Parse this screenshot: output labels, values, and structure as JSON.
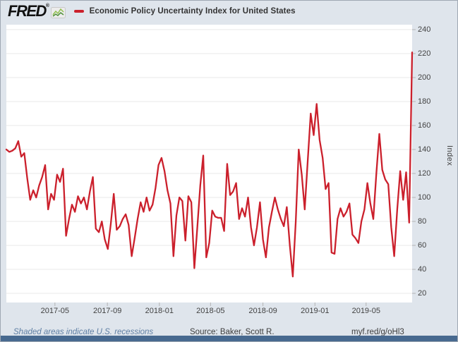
{
  "header": {
    "logo_text": "FRED",
    "logo_registered": "®",
    "series_title": "Economic Policy Uncertainty Index for United States"
  },
  "footer": {
    "recession_note": "Shaded areas indicate U.S. recessions",
    "source": "Source: Baker, Scott R.",
    "shortlink": "myf.red/g/oHl3"
  },
  "colors": {
    "line": "#cb202c",
    "background": "#dfe5ec",
    "plot_background": "#ffffff",
    "gridline": "#e8e8e8",
    "tick": "#b3b3b3",
    "axis_text": "#424242",
    "recession_note_text": "#5e7ea3",
    "footer_bar": "#47698f",
    "logo_icon_green_light": "#8fbf4d",
    "logo_icon_green_dark": "#4e8f3a"
  },
  "chart_data": {
    "type": "line",
    "title": "Economic Policy Uncertainty Index for United States",
    "xlabel": "",
    "ylabel": "Index",
    "legend_position": "top",
    "grid": "horizontal",
    "ylim": [
      12,
      244
    ],
    "yticks": [
      20,
      40,
      60,
      80,
      100,
      120,
      140,
      160,
      180,
      200,
      220,
      240
    ],
    "xticks": [
      "2017-05",
      "2017-09",
      "2018-01",
      "2018-05",
      "2018-09",
      "2019-01",
      "2019-05"
    ],
    "frequency": "weekly",
    "x_start": "2017-01-07",
    "x_end": "2019-08-17",
    "x_note": "weekly observations from 2017-01-07 through 2019-08-17",
    "values": [
      140,
      138,
      139,
      141,
      147,
      134,
      137,
      116,
      98,
      106,
      100,
      110,
      117,
      127,
      90,
      103,
      98,
      119,
      113,
      124,
      68,
      82,
      94,
      88,
      101,
      95,
      100,
      90,
      105,
      117,
      74,
      71,
      80,
      65,
      57,
      78,
      103,
      73,
      76,
      82,
      86,
      77,
      51,
      66,
      82,
      96,
      88,
      100,
      89,
      94,
      108,
      127,
      133,
      122,
      106,
      95,
      51,
      85,
      100,
      97,
      64,
      101,
      96,
      41,
      75,
      110,
      135,
      50,
      62,
      89,
      84,
      83,
      83,
      72,
      128,
      102,
      105,
      112,
      82,
      91,
      84,
      100,
      75,
      60,
      75,
      96,
      65,
      50,
      75,
      88,
      100,
      90,
      82,
      76,
      92,
      60,
      34,
      80,
      140,
      119,
      90,
      130,
      170,
      152,
      178,
      148,
      133,
      107,
      112,
      54,
      53,
      82,
      91,
      84,
      88,
      95,
      69,
      66,
      62,
      80,
      90,
      112,
      95,
      82,
      120,
      153,
      123,
      115,
      111,
      75,
      51,
      90,
      122,
      98,
      121,
      79,
      221
    ]
  }
}
